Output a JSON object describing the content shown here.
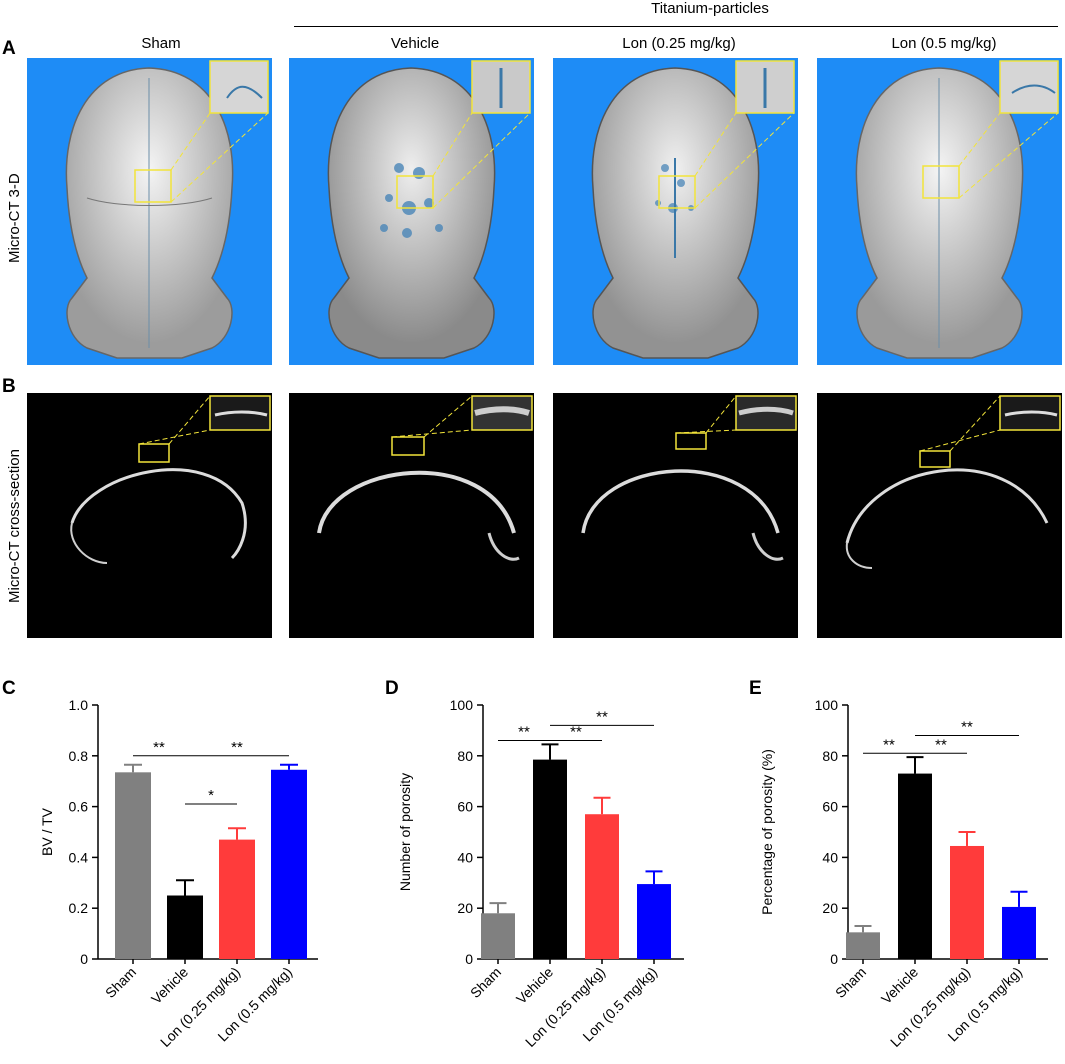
{
  "header": {
    "group_label": "Titanium-particles",
    "columns": [
      "Sham",
      "Vehicle",
      "Lon (0.25 mg/kg)",
      "Lon (0.5 mg/kg)"
    ]
  },
  "panels": {
    "a": "A",
    "b": "B",
    "c": "C",
    "d": "D",
    "e": "E"
  },
  "rows": {
    "row_a_label": "Micro-CT 3-D",
    "row_b_label": "Micro-CT cross-section"
  },
  "colors": {
    "ct3d_background": "#1e8cf6",
    "zoom_box": "#f2e43a",
    "bar_colors": [
      "#808080",
      "#000000",
      "#ff3b3b",
      "#0000ff"
    ]
  },
  "chart_data": [
    {
      "type": "bar",
      "categories": [
        "Sham",
        "Vehicle",
        "Lon (0.25 mg/kg)",
        "Lon (0.5 mg/kg)"
      ],
      "values": [
        0.735,
        0.25,
        0.47,
        0.745
      ],
      "errors": [
        0.03,
        0.06,
        0.045,
        0.02
      ],
      "ylabel": "BV / TV",
      "ylim": [
        0,
        1.0
      ],
      "yticks": [
        "0",
        "0.2",
        "0.4",
        "0.6",
        "0.8",
        "1.0"
      ],
      "ytick_values": [
        0,
        0.2,
        0.4,
        0.6,
        0.8,
        1.0
      ],
      "significance": [
        {
          "from": 0,
          "to": 1,
          "label": "**",
          "y": 0.8
        },
        {
          "from": 1,
          "to": 3,
          "label": "**",
          "y": 0.8
        },
        {
          "from": 1,
          "to": 2,
          "label": "*",
          "y": 0.61
        }
      ]
    },
    {
      "type": "bar",
      "categories": [
        "Sham",
        "Vehicle",
        "Lon (0.25 mg/kg)",
        "Lon (0.5 mg/kg)"
      ],
      "values": [
        18,
        78.5,
        57,
        29.5
      ],
      "errors": [
        4,
        6,
        6.5,
        5
      ],
      "ylabel": "Number of porosity",
      "ylim": [
        0,
        100
      ],
      "yticks": [
        "0",
        "20",
        "40",
        "60",
        "80",
        "100"
      ],
      "ytick_values": [
        0,
        20,
        40,
        60,
        80,
        100
      ],
      "significance": [
        {
          "from": 0,
          "to": 1,
          "label": "**",
          "y": 86
        },
        {
          "from": 1,
          "to": 2,
          "label": "**",
          "y": 86
        },
        {
          "from": 1,
          "to": 3,
          "label": "**",
          "y": 92
        }
      ]
    },
    {
      "type": "bar",
      "categories": [
        "Sham",
        "Vehicle",
        "Lon (0.25 mg/kg)",
        "Lon (0.5 mg/kg)"
      ],
      "values": [
        10.5,
        73,
        44.5,
        20.5
      ],
      "errors": [
        2.5,
        6.5,
        5.5,
        6
      ],
      "ylabel": "Percentage of porosity (%)",
      "ylim": [
        0,
        100
      ],
      "yticks": [
        "0",
        "20",
        "40",
        "60",
        "80",
        "100"
      ],
      "ytick_values": [
        0,
        20,
        40,
        60,
        80,
        100
      ],
      "significance": [
        {
          "from": 0,
          "to": 1,
          "label": "**",
          "y": 81
        },
        {
          "from": 1,
          "to": 2,
          "label": "**",
          "y": 81
        },
        {
          "from": 1,
          "to": 3,
          "label": "**",
          "y": 88
        }
      ]
    }
  ]
}
